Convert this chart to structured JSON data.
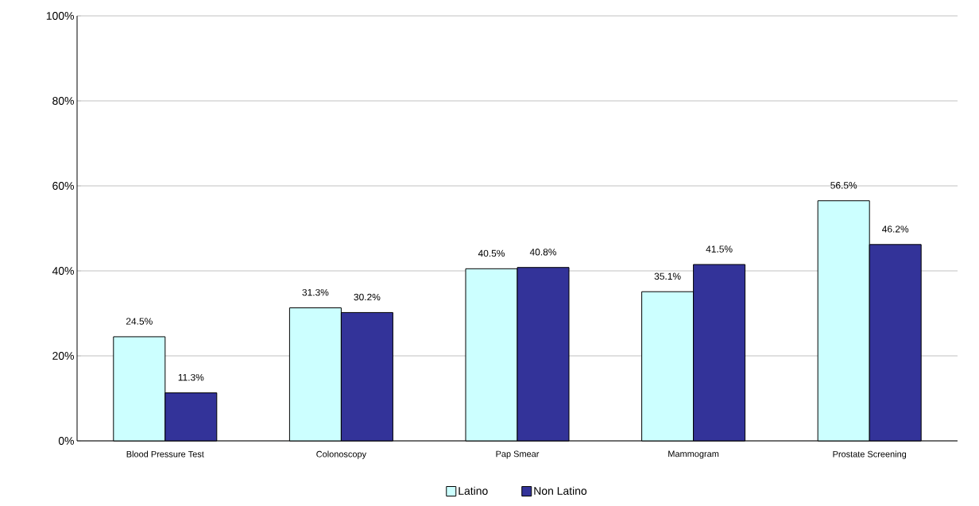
{
  "chart_data": {
    "type": "bar",
    "categories": [
      "Blood Pressure Test",
      "Colonoscopy",
      "Pap Smear",
      "Mammogram",
      "Prostate Screening"
    ],
    "series": [
      {
        "name": "Latino",
        "color": "#ccffff",
        "values": [
          24.5,
          31.3,
          40.5,
          35.1,
          56.5
        ],
        "value_labels": [
          "24.5%",
          "31.3%",
          "40.5%",
          "35.1%",
          "56.5%"
        ]
      },
      {
        "name": "Non Latino",
        "color": "#333399",
        "values": [
          11.3,
          30.2,
          40.8,
          41.5,
          46.2
        ],
        "value_labels": [
          "11.3%",
          "30.2%",
          "40.8%",
          "41.5%",
          "46.2%"
        ]
      }
    ],
    "ylim": [
      0,
      100
    ],
    "yticks": [
      {
        "value": 0,
        "label": "0%"
      },
      {
        "value": 20,
        "label": "20%"
      },
      {
        "value": 40,
        "label": "40%"
      },
      {
        "value": 60,
        "label": "60%"
      },
      {
        "value": 80,
        "label": "80%"
      },
      {
        "value": 100,
        "label": "100%"
      }
    ],
    "grid": "y",
    "legend": "bottom"
  }
}
